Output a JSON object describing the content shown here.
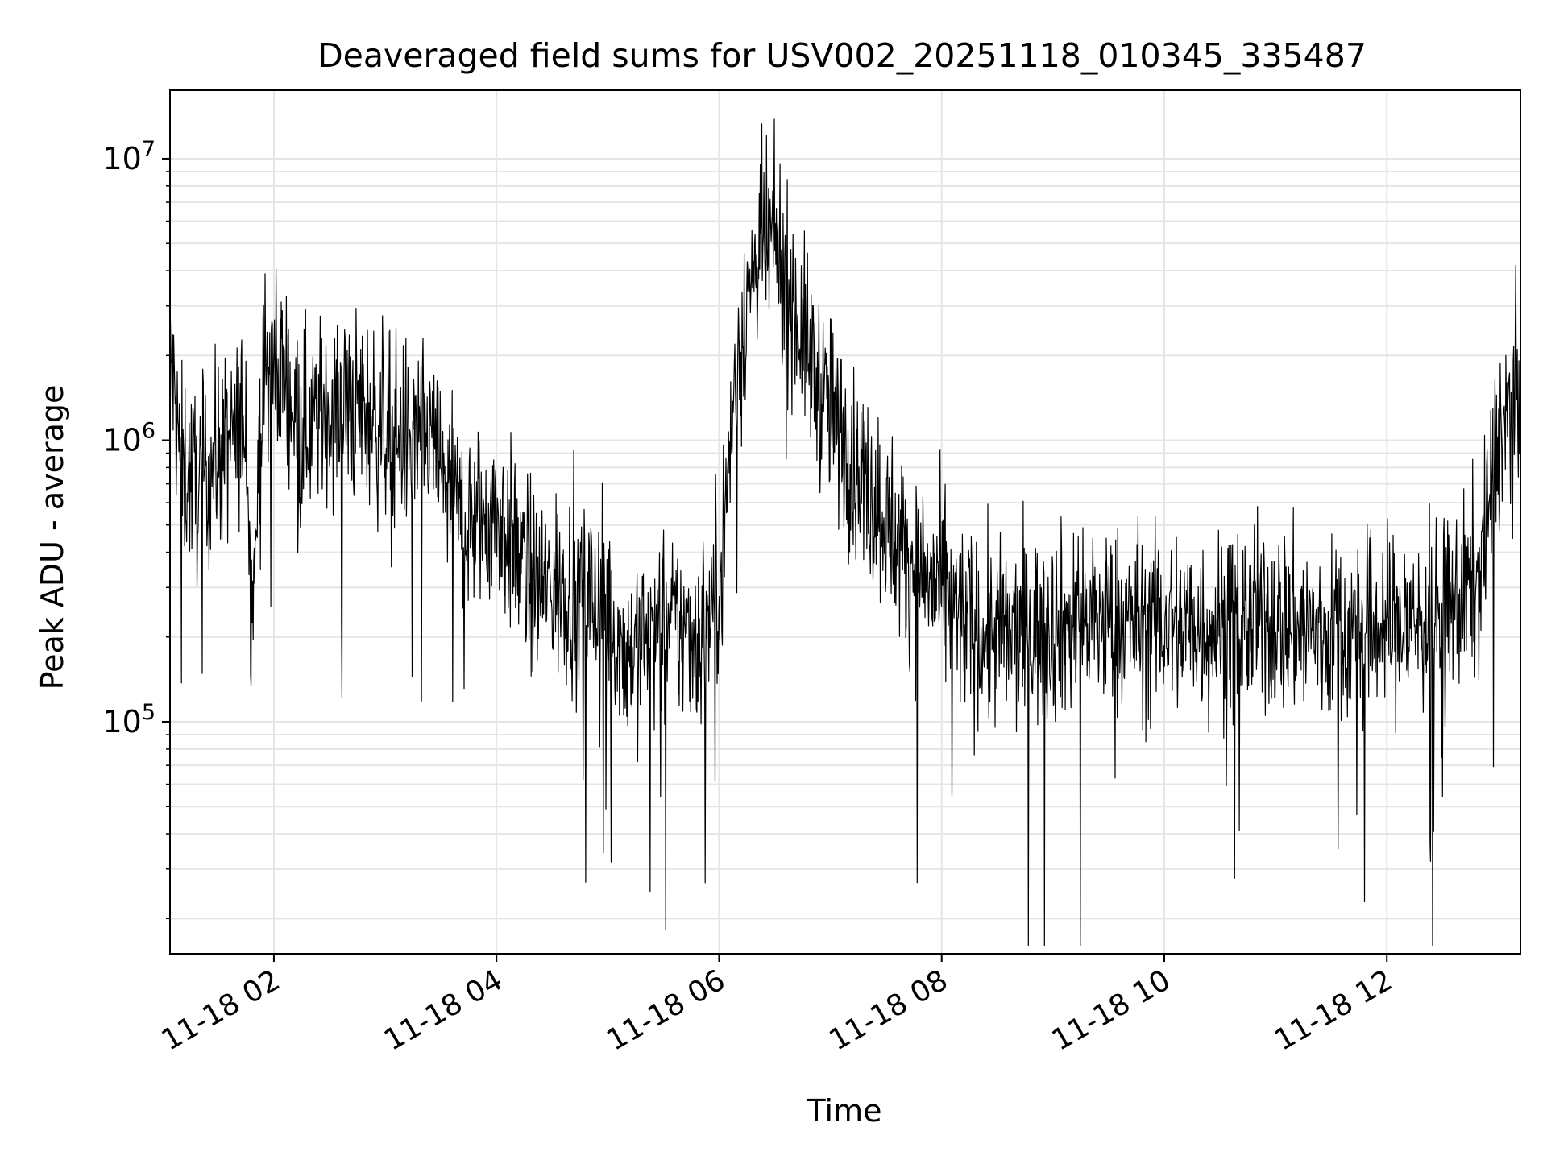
{
  "chart_data": {
    "type": "line",
    "title": "Deaveraged field sums for USV002_20251118_010345_335487",
    "xlabel": "Time",
    "ylabel": "Peak ADU - average",
    "x_axis_type": "datetime",
    "xlim": [
      "2025-11-18 01:04",
      "2025-11-18 13:12"
    ],
    "x_ticks": [
      {
        "time": "2025-11-18 02:00",
        "label": "11-18 02"
      },
      {
        "time": "2025-11-18 04:00",
        "label": "11-18 04"
      },
      {
        "time": "2025-11-18 06:00",
        "label": "11-18 06"
      },
      {
        "time": "2025-11-18 08:00",
        "label": "11-18 08"
      },
      {
        "time": "2025-11-18 10:00",
        "label": "11-18 10"
      },
      {
        "time": "2025-11-18 12:00",
        "label": "11-18 12"
      }
    ],
    "y_scale": "log",
    "ylim": [
      15000,
      17500000
    ],
    "y_ticks": [
      {
        "value": 100000,
        "base": "10",
        "exp": "5"
      },
      {
        "value": 1000000,
        "base": "10",
        "exp": "6"
      },
      {
        "value": 10000000,
        "base": "10",
        "exp": "7"
      }
    ],
    "grid": true,
    "line_color": "#000000",
    "grid_color": "#e5e5e5",
    "series": [
      {
        "name": "",
        "x": [
          "2025-11-18 01:04",
          "2025-11-18 01:10",
          "2025-11-18 01:20",
          "2025-11-18 01:30",
          "2025-11-18 01:40",
          "2025-11-18 01:45",
          "2025-11-18 01:48",
          "2025-11-18 01:55",
          "2025-11-18 02:05",
          "2025-11-18 02:15",
          "2025-11-18 02:30",
          "2025-11-18 02:45",
          "2025-11-18 03:00",
          "2025-11-18 03:15",
          "2025-11-18 03:25",
          "2025-11-18 03:35",
          "2025-11-18 03:45",
          "2025-11-18 04:00",
          "2025-11-18 04:20",
          "2025-11-18 04:40",
          "2025-11-18 05:00",
          "2025-11-18 05:10",
          "2025-11-18 05:20",
          "2025-11-18 05:35",
          "2025-11-18 05:50",
          "2025-11-18 06:00",
          "2025-11-18 06:10",
          "2025-11-18 06:20",
          "2025-11-18 06:30",
          "2025-11-18 06:40",
          "2025-11-18 06:55",
          "2025-11-18 07:10",
          "2025-11-18 07:25",
          "2025-11-18 07:40",
          "2025-11-18 08:00",
          "2025-11-18 08:20",
          "2025-11-18 08:40",
          "2025-11-18 09:00",
          "2025-11-18 09:30",
          "2025-11-18 10:00",
          "2025-11-18 10:30",
          "2025-11-18 11:00",
          "2025-11-18 11:30",
          "2025-11-18 12:00",
          "2025-11-18 12:30",
          "2025-11-18 12:50",
          "2025-11-18 13:00",
          "2025-11-18 13:12"
        ],
        "values": [
          2000000,
          800000,
          700000,
          900000,
          1000000,
          1300000,
          250000,
          1800000,
          1800000,
          1100000,
          1300000,
          1300000,
          1100000,
          1000000,
          1000000,
          650000,
          500000,
          550000,
          300000,
          300000,
          250000,
          170000,
          200000,
          220000,
          200000,
          300000,
          2000000,
          4500000,
          5000000,
          3000000,
          1500000,
          900000,
          600000,
          400000,
          280000,
          200000,
          200000,
          220000,
          230000,
          220000,
          220000,
          230000,
          200000,
          220000,
          230000,
          330000,
          1000000,
          1500000
        ]
      }
    ]
  }
}
